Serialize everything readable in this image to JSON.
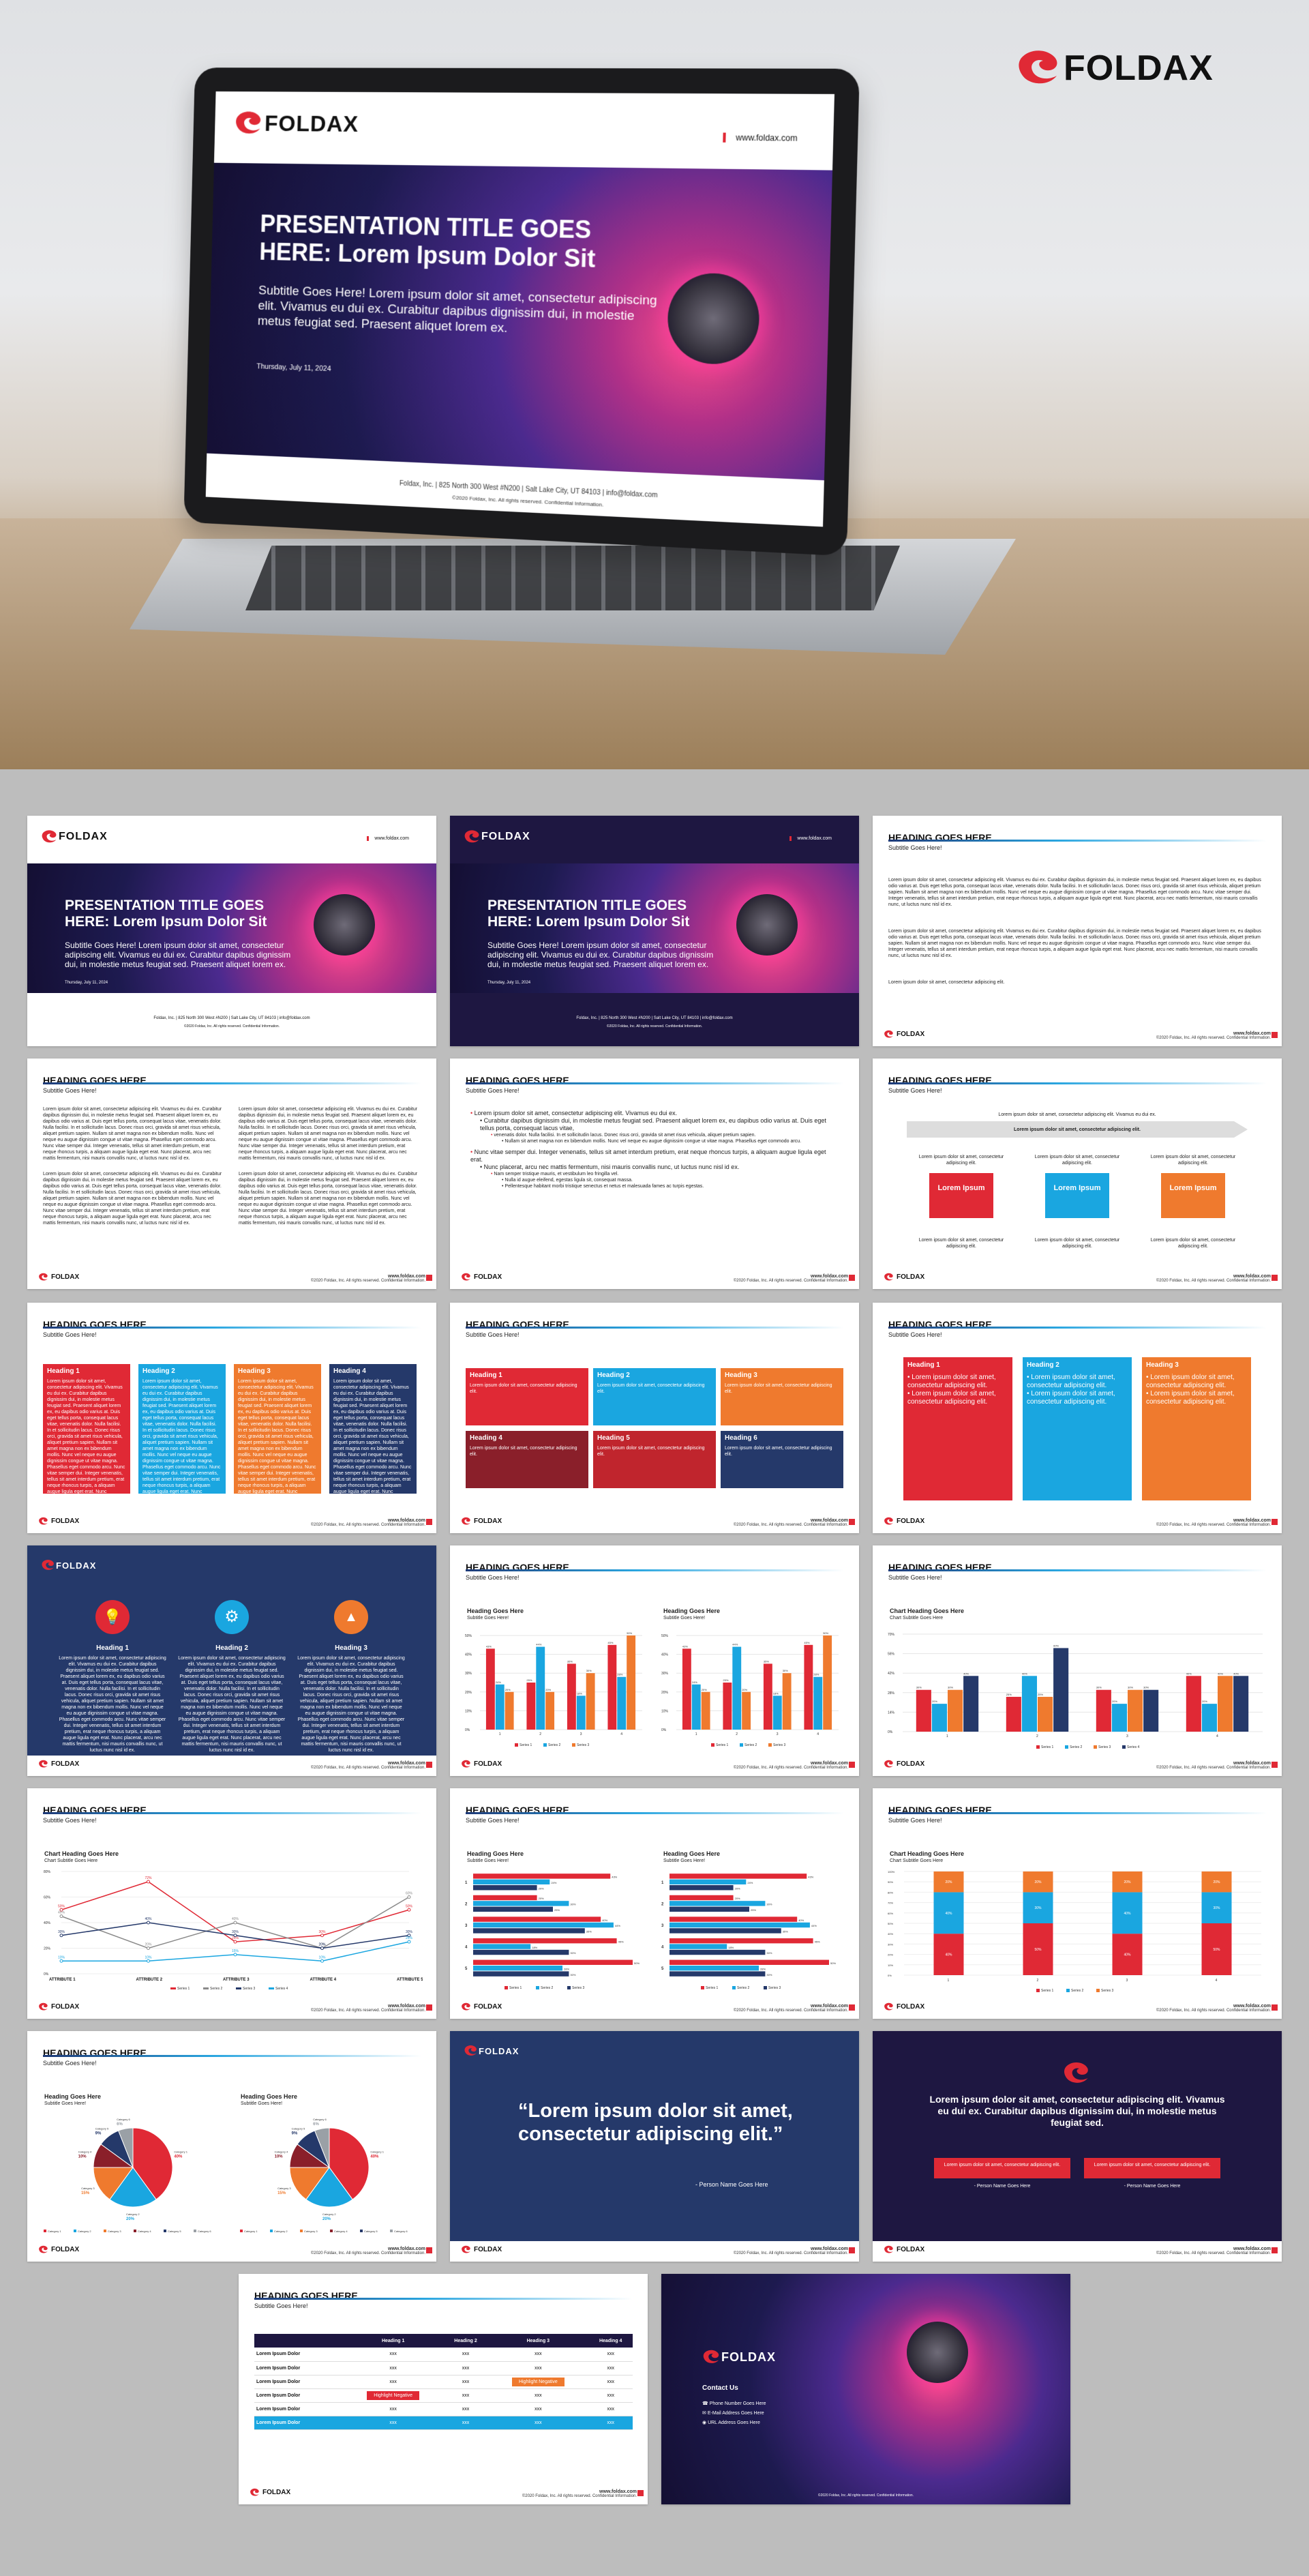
{
  "brand": {
    "name": "FOLDAX",
    "color_red": "#e02935",
    "color_navy": "#1e1741",
    "color_blue": "#25396a",
    "color_cyan": "#1aa6e0",
    "color_orange": "#ef7a2e",
    "url": "www.foldax.com",
    "copyright": "©2020 Foldax, Inc. All rights reserved. Confidential Information.",
    "address": "Foldax, Inc. | 825 North 300 West #N200 | Salt Lake City, UT 84103 | info@foldax.com"
  },
  "title_slide": {
    "title_line1": "PRESENTATION TITLE GOES",
    "title_line2": "HERE: Lorem Ipsum Dolor Sit",
    "subtitle": "Subtitle Goes Here! Lorem ipsum dolor sit amet, consectetur adipiscing elit. Vivamus eu dui ex. Curabitur dapibus dignissim dui, in molestie metus feugiat sed. Praesent aliquet lorem ex.",
    "date": "Thursday, July 11, 2024"
  },
  "common": {
    "heading": "HEADING GOES HERE",
    "subtitle": "Subtitle Goes Here!",
    "chart_heading": "Heading Goes Here",
    "chart_heading2": "Chart Heading Goes Here",
    "chart_subtitle": "Chart Subtitle Goes Here",
    "lorem_short": "Lorem ipsum dolor sit amet, consectetur adipiscing elit.",
    "lorem_block": "Lorem ipsum dolor sit amet, consectetur adipiscing elit. Vivamus eu dui ex. Curabitur dapibus dignissim dui, in molestie metus feugiat sed. Praesent aliquet lorem ex, eu dapibus odio varius at. Duis eget tellus porta, consequat lacus vitae, venenatis dolor. Nulla facilisi. In et sollicitudin lacus. Donec risus orci, gravida sit amet risus vehicula, aliquet pretium sapien. Nullam sit amet magna non ex bibendum mollis. Nunc vel neque eu augue dignissim congue ut vitae magna. Phasellus eget commodo arcu. Nunc vitae semper dui. Integer venenatis, tellus sit amet interdum pretium, erat neque rhoncus turpis, a aliquam augue ligula eget erat. Nunc placerat, arcu nec mattis fermentum, nisi mauris convallis nunc, ut luctus nunc nisl id ex.",
    "lorem_ipsum": "Lorem Ipsum",
    "lorem_ipsum_row": "Lorem Ipsum Dolor",
    "xxx": "xxx",
    "highlight": "Highlight Negative",
    "person": "- Person Name Goes Here"
  },
  "bullets": {
    "b1": "Lorem ipsum dolor sit amet, consectetur adipiscing elit. Vivamus eu dui ex.",
    "b1a": "Curabitur dapibus dignissim dui, in molestie metus feugiat sed. Praesent aliquet lorem ex, eu dapibus odio varius at. Duis eget tellus porta, consequat lacus vitae,",
    "b1b": "venenatis dolor. Nulla facilisi. In et sollicitudin lacus. Donec risus orci, gravida sit amet risus vehicula, aliquet pretium sapien.",
    "b1c": "Nullam sit amet magna non ex bibendum mollis. Nunc vel neque eu augue dignissim congue ut vitae magna. Phasellus eget commodo arcu.",
    "b2": "Nunc vitae semper dui. Integer venenatis, tellus sit amet interdum pretium, erat neque rhoncus turpis, a aliquam augue ligula eget erat.",
    "b2a": "Nunc placerat, arcu nec mattis fermentum, nisi mauris convallis nunc, ut luctus nunc nisl id ex.",
    "b2b": "Nam semper tristique mauris, et vestibulum leo fringilla vel.",
    "b2c": "Nulla id augue eleifend, egestas ligula sit, consequat massa.",
    "b2d": "Pellentesque habitant morbi tristique senectus et netus et malesuada fames ac turpis egestas."
  },
  "headings": {
    "h1": "Heading 1",
    "h2": "Heading 2",
    "h3": "Heading 3",
    "h4": "Heading 4",
    "h5": "Heading 5",
    "h6": "Heading 6"
  },
  "process": {
    "top": "Lorem ipsum dolor sit amet, consectetur adipiscing elit. Vivamus eu dui ex.",
    "arrow": "Lorem ipsum dolor sit amet, consectetur adipiscing elit."
  },
  "quote": {
    "text": "“Lorem ipsum dolor sit amet, consectetur adipiscing elit.”",
    "statement": "Lorem ipsum dolor sit amet, consectetur adipiscing elit. Vivamus eu dui ex. Curabitur dapibus dignissim dui, in molestie metus feugiat sed."
  },
  "table": {
    "headers": [
      "Heading 1",
      "Heading 2",
      "Heading 3",
      "Heading 4"
    ]
  },
  "contact": {
    "title": "Contact Us",
    "phone": "Phone Number Goes Here",
    "email": "E-Mail Address Goes Here",
    "web": "URL Address Goes Here"
  },
  "charts": {
    "column": {
      "type": "bar",
      "categories": [
        "1",
        "2",
        "3",
        "4"
      ],
      "series": [
        {
          "name": "Series 1",
          "values": [
            43,
            25,
            35,
            45
          ],
          "color": "#e02935"
        },
        {
          "name": "Series 2",
          "values": [
            24,
            44,
            18,
            28
          ],
          "color": "#1aa6e0"
        },
        {
          "name": "Series 3",
          "values": [
            20,
            20,
            30,
            50
          ],
          "color": "#ef7a2e"
        }
      ],
      "ylim": [
        0,
        50
      ]
    },
    "column4": {
      "type": "bar",
      "categories": [
        "1",
        "2",
        "3",
        "4"
      ],
      "series": [
        {
          "name": "Series 1",
          "values": [
            30,
            25,
            30,
            40
          ],
          "color": "#e02935"
        },
        {
          "name": "Series 2",
          "values": [
            20,
            40,
            20,
            20
          ],
          "color": "#1aa6e0"
        },
        {
          "name": "Series 3",
          "values": [
            30,
            25,
            30,
            40
          ],
          "color": "#ef7a2e"
        },
        {
          "name": "Series 4",
          "values": [
            40,
            60,
            30,
            40
          ],
          "color": "#25396a"
        }
      ],
      "ylim": [
        0,
        70
      ]
    },
    "line": {
      "type": "line",
      "categories": [
        "ATTRIBUTE 1",
        "ATTRIBUTE 2",
        "ATTRIBUTE 3",
        "ATTRIBUTE 4",
        "ATTRIBUTE 5"
      ],
      "series": [
        {
          "name": "Series 1",
          "values": [
            50,
            72,
            25,
            30,
            50
          ],
          "color": "#e02935"
        },
        {
          "name": "Series 2",
          "values": [
            45,
            20,
            40,
            20,
            60
          ],
          "color": "#8a8a8a"
        },
        {
          "name": "Series 3",
          "values": [
            30,
            40,
            30,
            20,
            30
          ],
          "color": "#25396a"
        },
        {
          "name": "Series 4",
          "values": [
            10,
            10,
            15,
            10,
            25
          ],
          "color": "#1aa6e0"
        }
      ],
      "ylim": [
        0,
        80
      ]
    },
    "hbar": {
      "type": "bar",
      "categories": [
        "1",
        "2",
        "3",
        "4",
        "5"
      ],
      "series": [
        {
          "name": "Series 1",
          "values": [
            43,
            20,
            40,
            45,
            50
          ],
          "color": "#e02935"
        },
        {
          "name": "Series 2",
          "values": [
            24,
            30,
            44,
            18,
            28
          ],
          "color": "#1aa6e0"
        },
        {
          "name": "Series 3",
          "values": [
            20,
            25,
            35,
            30,
            30
          ],
          "color": "#25396a"
        }
      ],
      "xlim": [
        0,
        50
      ]
    },
    "stacked": {
      "type": "bar",
      "categories": [
        "1",
        "2",
        "3",
        "4"
      ],
      "series": [
        {
          "name": "Series 1",
          "values": [
            40,
            50,
            40,
            50
          ],
          "color": "#e02935"
        },
        {
          "name": "Series 2",
          "values": [
            40,
            30,
            40,
            30
          ],
          "color": "#1aa6e0"
        },
        {
          "name": "Series 3",
          "values": [
            20,
            20,
            20,
            20
          ],
          "color": "#ef7a2e"
        }
      ],
      "ylim": [
        0,
        100
      ]
    },
    "pie": {
      "type": "pie",
      "categories": [
        "Category 1",
        "Category 2",
        "Category 3",
        "Category 4",
        "Category 5",
        "Category 6"
      ],
      "values": [
        40,
        20,
        15,
        10,
        9,
        6
      ],
      "colors": [
        "#e02935",
        "#1aa6e0",
        "#ef7a2e",
        "#8a1f2a",
        "#25396a",
        "#9aa0a6"
      ]
    }
  }
}
